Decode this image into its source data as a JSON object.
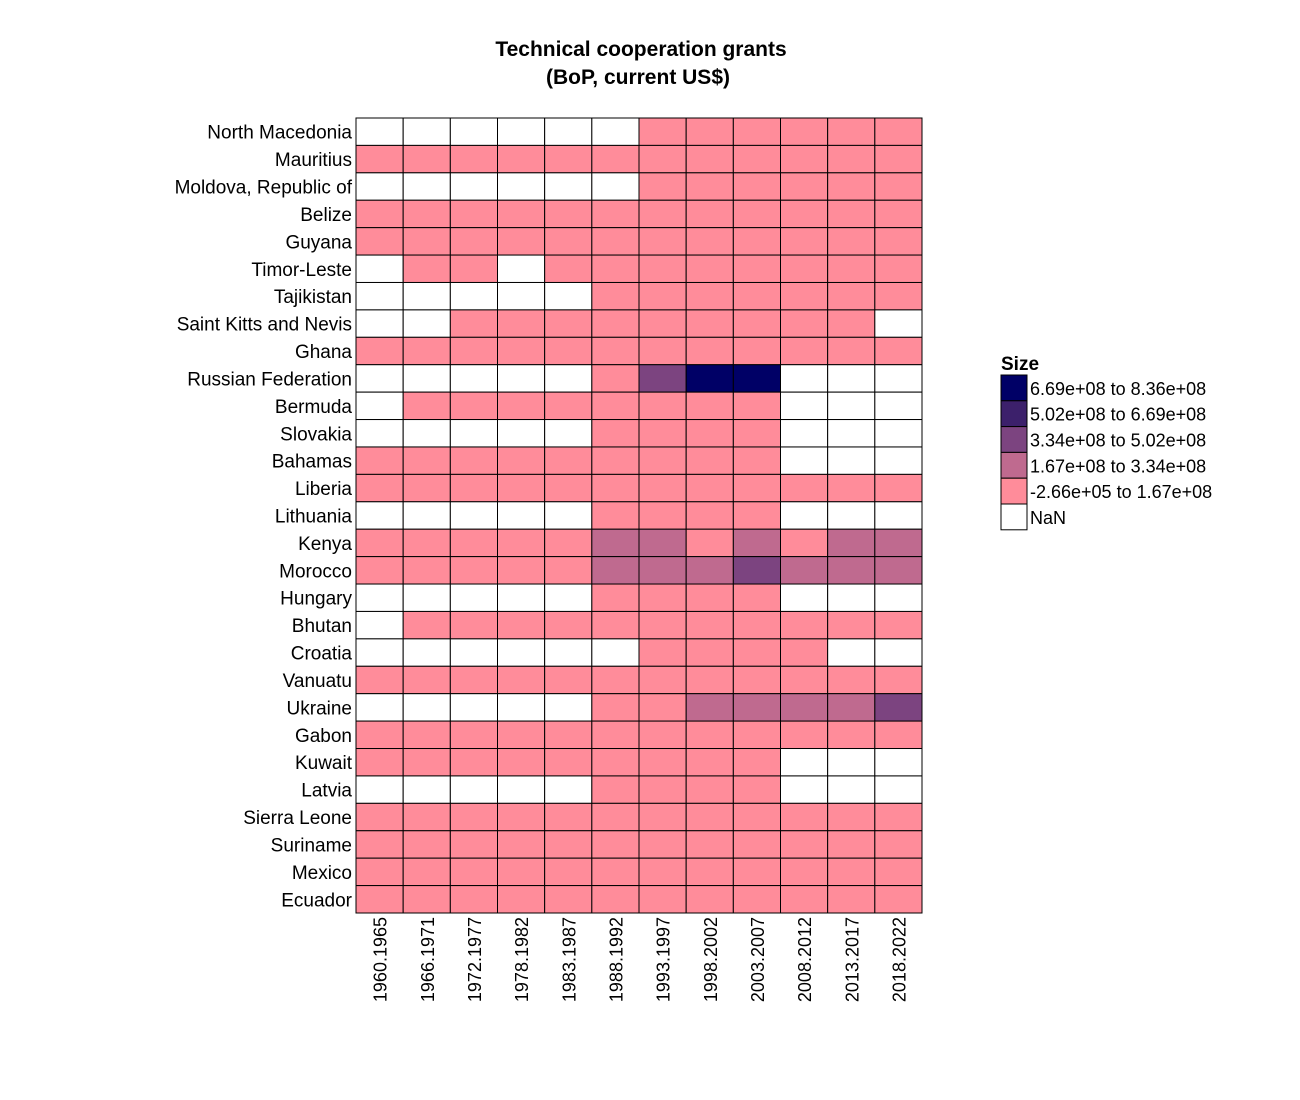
{
  "chart_data": {
    "type": "heatmap",
    "title": "Technical cooperation grants\n(BoP, current US$)",
    "title_lines": [
      "Technical cooperation grants",
      "(BoP, current US$)"
    ],
    "columns": [
      "1960.1965",
      "1966.1971",
      "1972.1977",
      "1978.1982",
      "1983.1987",
      "1988.1992",
      "1993.1997",
      "1998.2002",
      "2003.2007",
      "2008.2012",
      "2013.2017",
      "2018.2022"
    ],
    "rows": [
      "North Macedonia",
      "Mauritius",
      "Moldova, Republic of",
      "Belize",
      "Guyana",
      "Timor-Leste",
      "Tajikistan",
      "Saint Kitts and Nevis",
      "Ghana",
      "Russian Federation",
      "Bermuda",
      "Slovakia",
      "Bahamas",
      "Liberia",
      "Lithuania",
      "Kenya",
      "Morocco",
      "Hungary",
      "Bhutan",
      "Croatia",
      "Vanuatu",
      "Ukraine",
      "Gabon",
      "Kuwait",
      "Latvia",
      "Sierra Leone",
      "Suriname",
      "Mexico",
      "Ecuador"
    ],
    "legend": {
      "title": "Size",
      "placement": "right",
      "bins": [
        {
          "label": "6.69e+08 to 8.36e+08",
          "color": "#000066"
        },
        {
          "label": "5.02e+08 to 6.69e+08",
          "color": "#3c206b"
        },
        {
          "label": "3.34e+08 to 5.02e+08",
          "color": "#7c4480"
        },
        {
          "label": "1.67e+08 to 3.34e+08",
          "color": "#bf6a8f"
        },
        {
          "label": "-2.66e+05 to 1.67e+08",
          "color": "#ff8c9a"
        },
        {
          "label": "NaN",
          "color": "#ffffff"
        }
      ]
    },
    "bin_index_note": "values are legend bin indices: 0=6.69e+08 to 8.36e+08, 1=5.02e+08 to 6.69e+08, 2=3.34e+08 to 5.02e+08, 3=1.67e+08 to 3.34e+08, 4=-2.66e+05 to 1.67e+08, null=NaN",
    "values": [
      [
        null,
        null,
        null,
        null,
        null,
        null,
        4,
        4,
        4,
        4,
        4,
        4
      ],
      [
        4,
        4,
        4,
        4,
        4,
        4,
        4,
        4,
        4,
        4,
        4,
        4
      ],
      [
        null,
        null,
        null,
        null,
        null,
        null,
        4,
        4,
        4,
        4,
        4,
        4
      ],
      [
        4,
        4,
        4,
        4,
        4,
        4,
        4,
        4,
        4,
        4,
        4,
        4
      ],
      [
        4,
        4,
        4,
        4,
        4,
        4,
        4,
        4,
        4,
        4,
        4,
        4
      ],
      [
        null,
        4,
        4,
        null,
        4,
        4,
        4,
        4,
        4,
        4,
        4,
        4
      ],
      [
        null,
        null,
        null,
        null,
        null,
        4,
        4,
        4,
        4,
        4,
        4,
        4
      ],
      [
        null,
        null,
        4,
        4,
        4,
        4,
        4,
        4,
        4,
        4,
        4,
        null
      ],
      [
        4,
        4,
        4,
        4,
        4,
        4,
        4,
        4,
        4,
        4,
        4,
        4
      ],
      [
        null,
        null,
        null,
        null,
        null,
        4,
        2,
        0,
        0,
        null,
        null,
        null
      ],
      [
        null,
        4,
        4,
        4,
        4,
        4,
        4,
        4,
        4,
        null,
        null,
        null
      ],
      [
        null,
        null,
        null,
        null,
        null,
        4,
        4,
        4,
        4,
        null,
        null,
        null
      ],
      [
        4,
        4,
        4,
        4,
        4,
        4,
        4,
        4,
        4,
        null,
        null,
        null
      ],
      [
        4,
        4,
        4,
        4,
        4,
        4,
        4,
        4,
        4,
        4,
        4,
        4
      ],
      [
        null,
        null,
        null,
        null,
        null,
        4,
        4,
        4,
        4,
        null,
        null,
        null
      ],
      [
        4,
        4,
        4,
        4,
        4,
        3,
        3,
        4,
        3,
        4,
        3,
        3
      ],
      [
        4,
        4,
        4,
        4,
        4,
        3,
        3,
        3,
        2,
        3,
        3,
        3
      ],
      [
        null,
        null,
        null,
        null,
        null,
        4,
        4,
        4,
        4,
        null,
        null,
        null
      ],
      [
        null,
        4,
        4,
        4,
        4,
        4,
        4,
        4,
        4,
        4,
        4,
        4
      ],
      [
        null,
        null,
        null,
        null,
        null,
        null,
        4,
        4,
        4,
        4,
        null,
        null
      ],
      [
        4,
        4,
        4,
        4,
        4,
        4,
        4,
        4,
        4,
        4,
        4,
        4
      ],
      [
        null,
        null,
        null,
        null,
        null,
        4,
        4,
        3,
        3,
        3,
        3,
        2
      ],
      [
        4,
        4,
        4,
        4,
        4,
        4,
        4,
        4,
        4,
        4,
        4,
        4
      ],
      [
        4,
        4,
        4,
        4,
        4,
        4,
        4,
        4,
        4,
        null,
        null,
        null
      ],
      [
        null,
        null,
        null,
        null,
        null,
        4,
        4,
        4,
        4,
        null,
        null,
        null
      ],
      [
        4,
        4,
        4,
        4,
        4,
        4,
        4,
        4,
        4,
        4,
        4,
        4
      ],
      [
        4,
        4,
        4,
        4,
        4,
        4,
        4,
        4,
        4,
        4,
        4,
        4
      ],
      [
        4,
        4,
        4,
        4,
        4,
        4,
        4,
        4,
        4,
        4,
        4,
        4
      ],
      [
        4,
        4,
        4,
        4,
        4,
        4,
        4,
        4,
        4,
        4,
        4,
        4
      ]
    ]
  }
}
